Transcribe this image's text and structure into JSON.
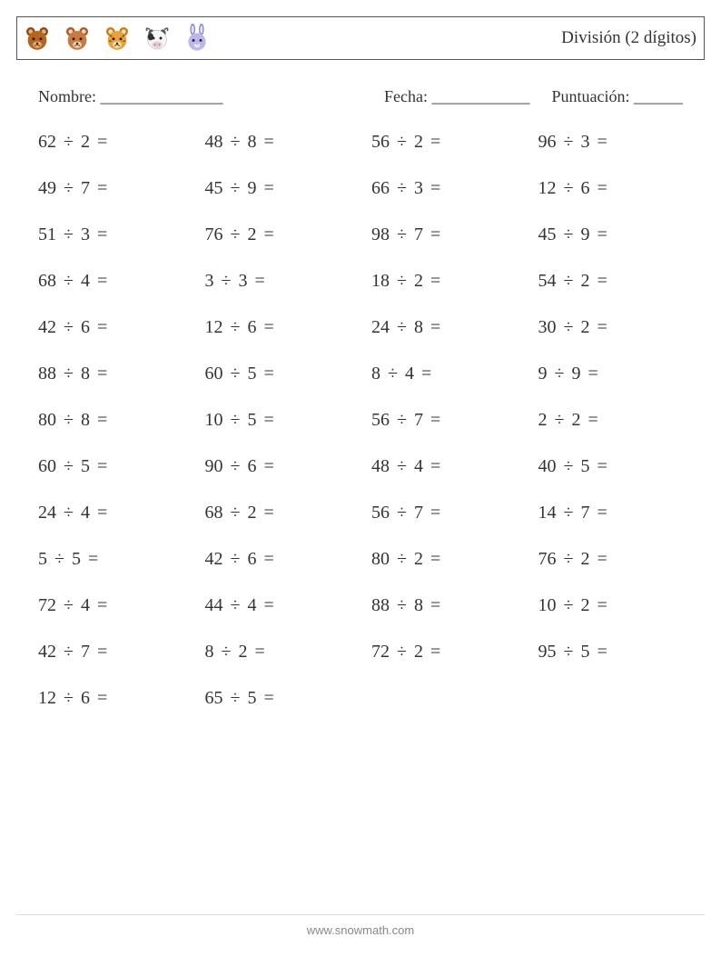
{
  "worksheet": {
    "title": "División (2 dígitos)",
    "name_label": "Nombre: _______________",
    "date_label": "Fecha: ____________",
    "score_label": "Puntuación: ______",
    "operator": "÷",
    "equals": "=",
    "columns": 4,
    "text_color": "#333333",
    "border_color": "#555555",
    "background_color": "#ffffff",
    "font_size_problem": 20,
    "font_size_title": 19,
    "font_size_info": 18,
    "row_gap": 28,
    "col_gap": 24,
    "problems": [
      {
        "a": 62,
        "b": 2
      },
      {
        "a": 48,
        "b": 8
      },
      {
        "a": 56,
        "b": 2
      },
      {
        "a": 96,
        "b": 3
      },
      {
        "a": 49,
        "b": 7
      },
      {
        "a": 45,
        "b": 9
      },
      {
        "a": 66,
        "b": 3
      },
      {
        "a": 12,
        "b": 6
      },
      {
        "a": 51,
        "b": 3
      },
      {
        "a": 76,
        "b": 2
      },
      {
        "a": 98,
        "b": 7
      },
      {
        "a": 45,
        "b": 9
      },
      {
        "a": 68,
        "b": 4
      },
      {
        "a": 3,
        "b": 3
      },
      {
        "a": 18,
        "b": 2
      },
      {
        "a": 54,
        "b": 2
      },
      {
        "a": 42,
        "b": 6
      },
      {
        "a": 12,
        "b": 6
      },
      {
        "a": 24,
        "b": 8
      },
      {
        "a": 30,
        "b": 2
      },
      {
        "a": 88,
        "b": 8
      },
      {
        "a": 60,
        "b": 5
      },
      {
        "a": 8,
        "b": 4
      },
      {
        "a": 9,
        "b": 9
      },
      {
        "a": 80,
        "b": 8
      },
      {
        "a": 10,
        "b": 5
      },
      {
        "a": 56,
        "b": 7
      },
      {
        "a": 2,
        "b": 2
      },
      {
        "a": 60,
        "b": 5
      },
      {
        "a": 90,
        "b": 6
      },
      {
        "a": 48,
        "b": 4
      },
      {
        "a": 40,
        "b": 5
      },
      {
        "a": 24,
        "b": 4
      },
      {
        "a": 68,
        "b": 2
      },
      {
        "a": 56,
        "b": 7
      },
      {
        "a": 14,
        "b": 7
      },
      {
        "a": 5,
        "b": 5
      },
      {
        "a": 42,
        "b": 6
      },
      {
        "a": 80,
        "b": 2
      },
      {
        "a": 76,
        "b": 2
      },
      {
        "a": 72,
        "b": 4
      },
      {
        "a": 44,
        "b": 4
      },
      {
        "a": 88,
        "b": 8
      },
      {
        "a": 10,
        "b": 2
      },
      {
        "a": 42,
        "b": 7
      },
      {
        "a": 8,
        "b": 2
      },
      {
        "a": 72,
        "b": 2
      },
      {
        "a": 95,
        "b": 5
      },
      {
        "a": 12,
        "b": 6
      },
      {
        "a": 65,
        "b": 5
      }
    ],
    "animals": [
      {
        "name": "bear-icon",
        "face": "#b5651d",
        "ear": "#8b4a12",
        "inner": "#e8b07a",
        "eye": "#2a1a0a"
      },
      {
        "name": "fox-icon",
        "face": "#c97a3f",
        "ear": "#a85a28",
        "inner": "#f2d6b8",
        "eye": "#2a1a0a"
      },
      {
        "name": "tiger-icon",
        "face": "#e8a23a",
        "ear": "#c97a1a",
        "inner": "#f6e2b8",
        "eye": "#2a1a0a"
      },
      {
        "name": "cow-icon",
        "face": "#f5f5f5",
        "ear": "#555555",
        "inner": "#333333",
        "eye": "#222222"
      },
      {
        "name": "rabbit-icon",
        "face": "#b9b8e8",
        "ear": "#8a88c8",
        "inner": "#e6e5f6",
        "eye": "#2a1a2a"
      }
    ]
  },
  "footer": {
    "text": "www.snowmath.com",
    "color": "#888888",
    "font_size": 13
  }
}
